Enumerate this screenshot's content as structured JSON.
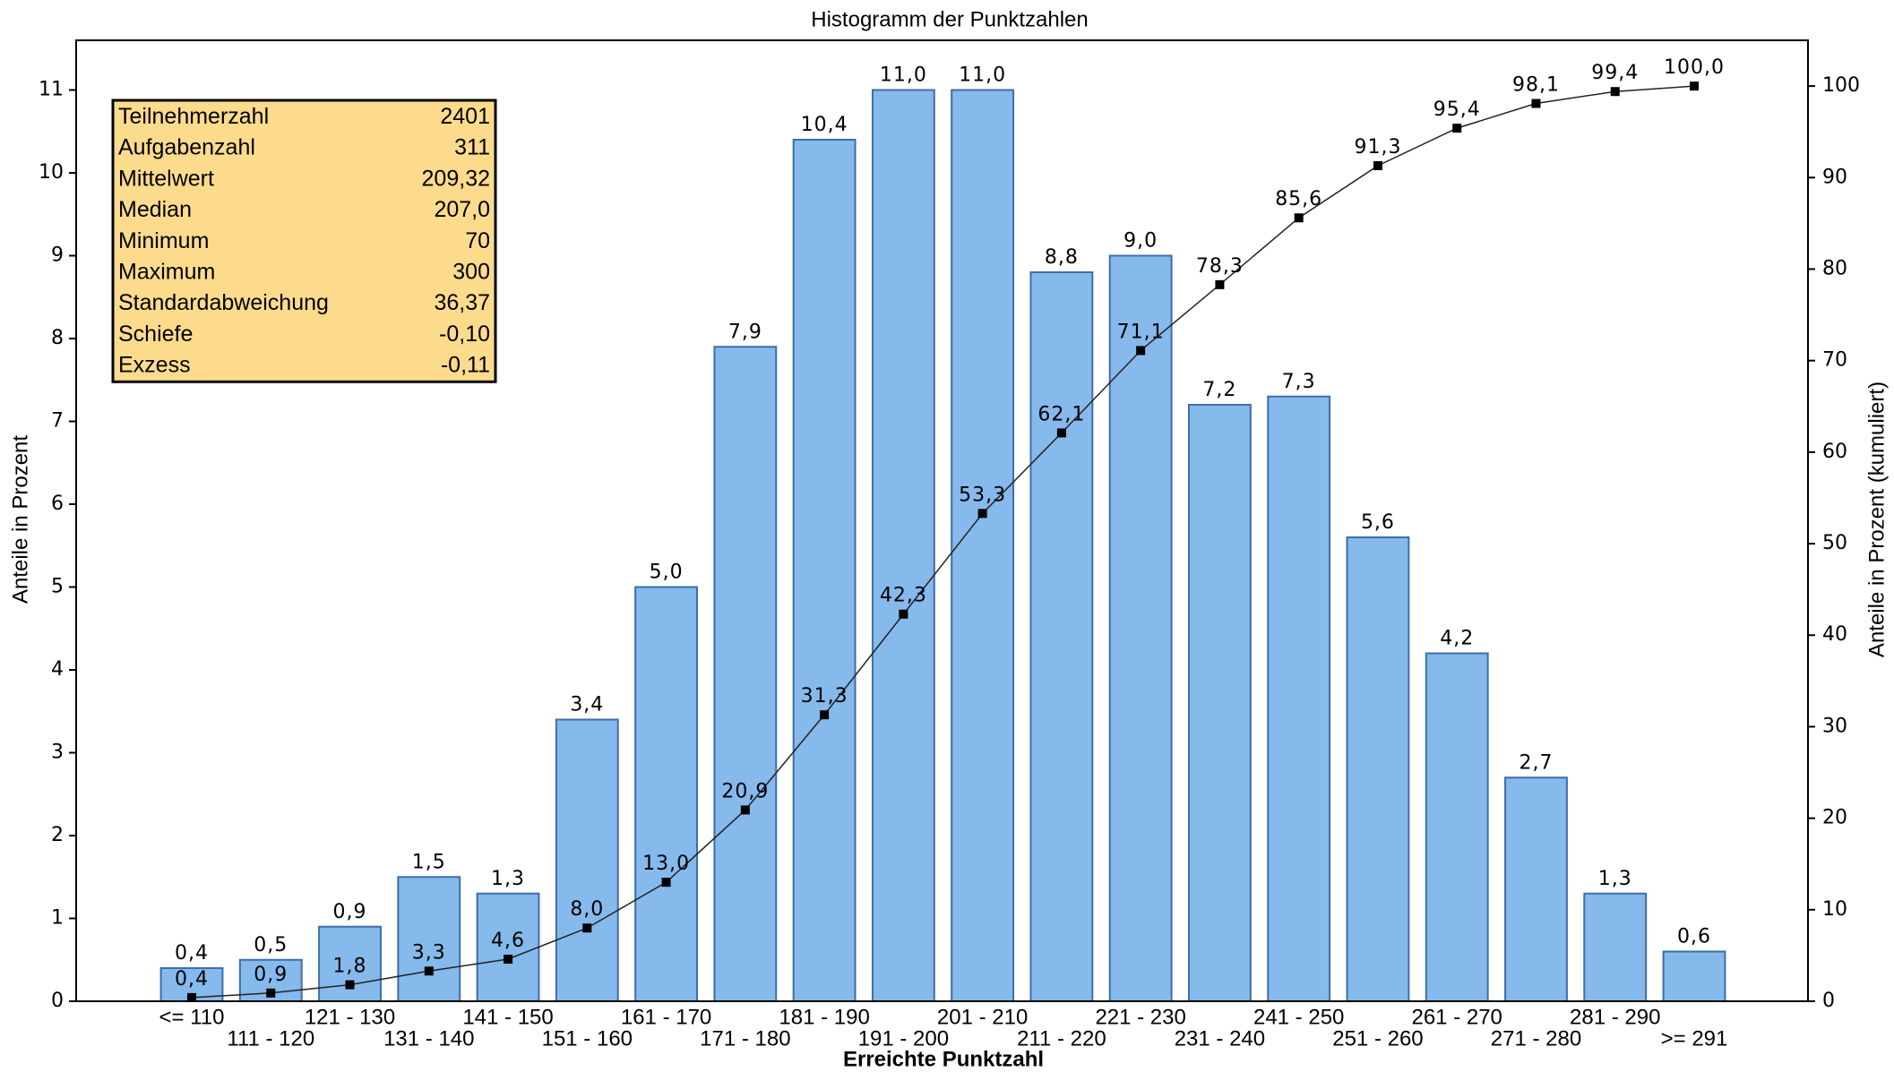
{
  "chart_data": {
    "type": "bar",
    "title": "Histogramm der Punktzahlen",
    "x_label": "Erreichte Punktzahl",
    "y_label": "Anteile in Prozent",
    "y2_label": "Anteile in Prozent (kumuliert)",
    "categories": [
      "<= 110",
      "111 - 120",
      "121 - 130",
      "131 - 140",
      "141 - 150",
      "151 - 160",
      "161 - 170",
      "171 - 180",
      "181 - 190",
      "191 - 200",
      "201 - 210",
      "211 - 220",
      "221 - 230",
      "231 - 240",
      "241 - 250",
      "251 - 260",
      "261 - 270",
      "271 - 280",
      "281 - 290",
      ">= 291"
    ],
    "series": [
      {
        "type": "bar",
        "color": "#86b9ec",
        "values": [
          0.4,
          0.5,
          0.9,
          1.5,
          1.3,
          3.4,
          5.0,
          7.9,
          10.4,
          11.0,
          11.0,
          8.8,
          9.0,
          7.2,
          7.3,
          5.6,
          4.2,
          2.7,
          1.3,
          0.6
        ],
        "value_labels": [
          "0,4",
          "0,5",
          "0,9",
          "1,5",
          "1,3",
          "3,4",
          "5,0",
          "7,9",
          "10,4",
          "11,0",
          "11,0",
          "8,8",
          "9,0",
          "7,2",
          "7,3",
          "5,6",
          "4,2",
          "2,7",
          "1,3",
          "0,6"
        ]
      },
      {
        "type": "line",
        "axis": "y2",
        "color": "#222222",
        "values": [
          0.4,
          0.9,
          1.8,
          3.3,
          4.6,
          8.0,
          13.0,
          20.9,
          31.3,
          42.3,
          53.3,
          62.1,
          71.1,
          78.3,
          85.6,
          91.3,
          95.4,
          98.1,
          99.4,
          100.0
        ],
        "value_labels": [
          "0,4",
          "0,9",
          "1,8",
          "3,3",
          "4,6",
          "8,0",
          "13,0",
          "20,9",
          "31,3",
          "42,3",
          "53,3",
          "62,1",
          "71,1",
          "78,3",
          "85,6",
          "91,3",
          "95,4",
          "98,1",
          "99,4",
          "100,0"
        ]
      }
    ],
    "ylim": [
      0,
      11.6
    ],
    "yticks": [
      0,
      1,
      2,
      3,
      4,
      5,
      6,
      7,
      8,
      9,
      10,
      11
    ],
    "y2lim": [
      0,
      105
    ],
    "y2ticks": [
      0,
      10,
      20,
      30,
      40,
      50,
      60,
      70,
      80,
      90,
      100
    ],
    "stats_box": {
      "rows": [
        [
          "Teilnehmerzahl",
          "2401"
        ],
        [
          "Aufgabenzahl",
          "311"
        ],
        [
          "Mittelwert",
          "209,32"
        ],
        [
          "Median",
          "207,0"
        ],
        [
          "Minimum",
          "70"
        ],
        [
          "Maximum",
          "300"
        ],
        [
          "Standardabweichung",
          "36,37"
        ],
        [
          "Schiefe",
          "-0,10"
        ],
        [
          "Exzess",
          "-0,11"
        ]
      ]
    }
  }
}
